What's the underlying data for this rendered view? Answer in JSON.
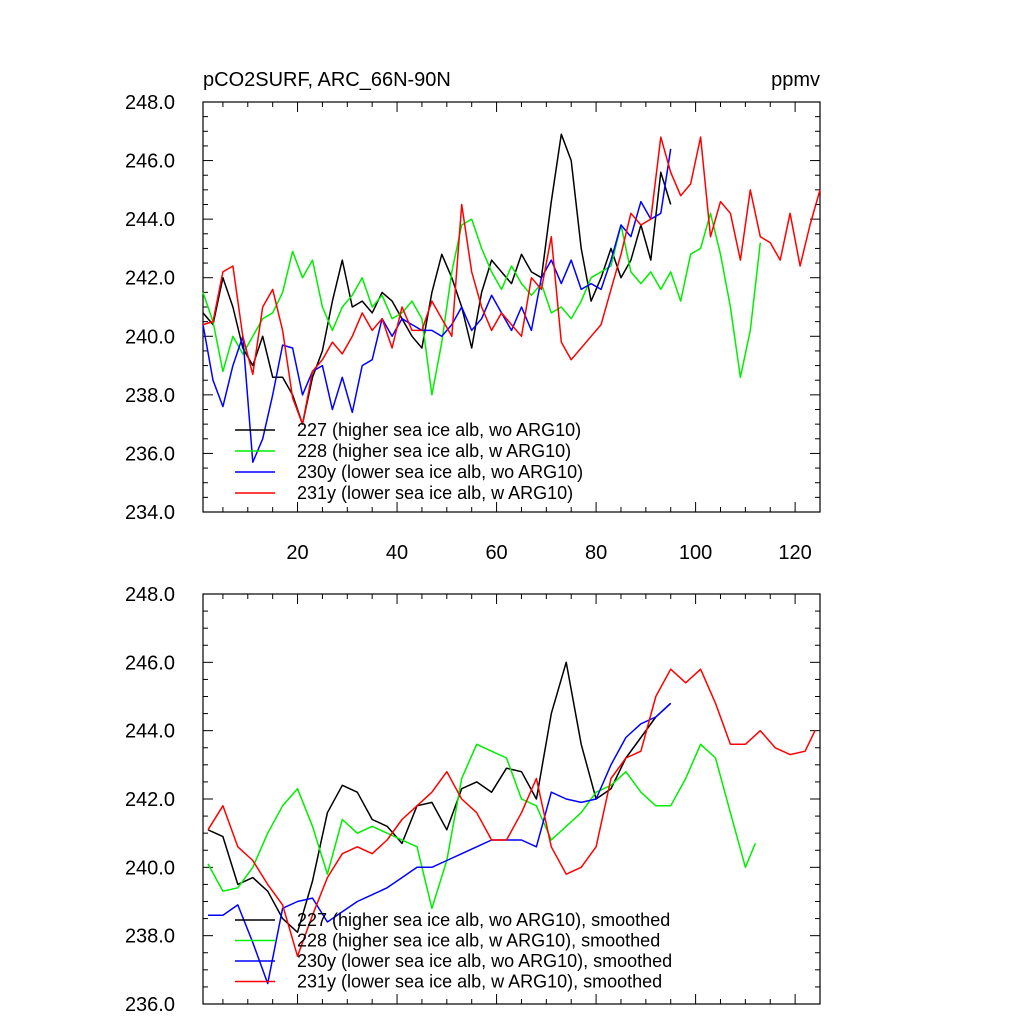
{
  "chart_data": [
    {
      "type": "line",
      "title": "pCO2SURF, ARC_66N-90N",
      "units": "ppmv",
      "xlim": [
        1,
        125
      ],
      "ylim": [
        234,
        248
      ],
      "xticks": [
        20,
        40,
        60,
        80,
        100,
        120
      ],
      "yticks": [
        234,
        236,
        238,
        240,
        242,
        244,
        246,
        248
      ],
      "ytick_labels": [
        "234.0",
        "236.0",
        "238.0",
        "240.0",
        "242.0",
        "244.0",
        "246.0",
        "248.0"
      ],
      "series": [
        {
          "name": "227 (higher sea ice alb, wo ARG10)",
          "color": "#000000",
          "x": [
            1,
            3,
            5,
            7,
            9,
            11,
            13,
            15,
            17,
            19,
            21,
            23,
            25,
            27,
            29,
            31,
            33,
            35,
            37,
            39,
            41,
            43,
            45,
            47,
            49,
            51,
            53,
            55,
            57,
            59,
            61,
            63,
            65,
            67,
            69,
            71,
            73,
            75,
            77,
            79,
            81,
            83,
            85,
            87,
            89,
            91,
            93,
            95
          ],
          "values": [
            240.8,
            240.4,
            242.0,
            241.0,
            239.6,
            239.0,
            240.0,
            238.6,
            238.6,
            238.0,
            237.0,
            238.6,
            239.5,
            241.2,
            242.6,
            241.0,
            241.2,
            240.8,
            241.5,
            241.2,
            240.6,
            240.0,
            239.6,
            241.5,
            242.8,
            242.0,
            241.0,
            239.6,
            241.5,
            242.6,
            242.2,
            241.8,
            242.8,
            242.2,
            242.0,
            244.6,
            246.9,
            246.0,
            243.0,
            241.2,
            242.0,
            243.0,
            242.0,
            242.6,
            243.8,
            242.6,
            245.6,
            244.5
          ]
        },
        {
          "name": "228 (higher sea ice alb, w ARG10)",
          "color": "#00ee00",
          "x": [
            1,
            3,
            5,
            7,
            9,
            11,
            13,
            15,
            17,
            19,
            21,
            23,
            25,
            27,
            29,
            31,
            33,
            35,
            37,
            39,
            41,
            43,
            45,
            47,
            49,
            51,
            53,
            55,
            57,
            59,
            61,
            63,
            65,
            67,
            69,
            71,
            73,
            75,
            77,
            79,
            81,
            83,
            85,
            87,
            89,
            91,
            93,
            95,
            97,
            99,
            101,
            103,
            105,
            107,
            109,
            111,
            113
          ],
          "values": [
            241.5,
            240.5,
            238.8,
            240.0,
            239.4,
            240.0,
            240.6,
            240.8,
            241.5,
            242.9,
            242.0,
            242.6,
            241.0,
            240.2,
            241.0,
            241.4,
            242.0,
            241.0,
            241.4,
            240.6,
            240.8,
            241.2,
            240.6,
            238.0,
            239.8,
            242.2,
            243.8,
            244.0,
            243.0,
            242.2,
            241.6,
            242.4,
            241.8,
            241.4,
            241.8,
            240.8,
            241.0,
            240.6,
            241.2,
            242.0,
            242.2,
            242.4,
            243.8,
            242.2,
            241.8,
            242.2,
            241.6,
            242.2,
            241.2,
            242.8,
            243.0,
            244.2,
            242.8,
            241.0,
            238.6,
            240.2,
            243.2
          ]
        },
        {
          "name": "230y (lower sea ice alb, wo ARG10)",
          "color": "#0000ff",
          "x": [
            1,
            3,
            5,
            7,
            9,
            11,
            13,
            15,
            17,
            19,
            21,
            23,
            25,
            27,
            29,
            31,
            33,
            35,
            37,
            39,
            41,
            43,
            45,
            47,
            49,
            51,
            53,
            55,
            57,
            59,
            61,
            63,
            65,
            67,
            69,
            71,
            73,
            75,
            77,
            79,
            81,
            83,
            85,
            87,
            89,
            91,
            93,
            95
          ],
          "values": [
            240.4,
            238.5,
            237.6,
            239.0,
            240.0,
            235.7,
            236.5,
            238.0,
            239.7,
            239.6,
            238.0,
            238.8,
            239.0,
            237.5,
            238.6,
            237.4,
            239.0,
            239.2,
            240.6,
            240.0,
            240.6,
            240.4,
            240.2,
            240.2,
            240.0,
            240.4,
            241.0,
            240.2,
            240.6,
            241.4,
            240.8,
            240.2,
            241.0,
            240.2,
            242.0,
            242.6,
            241.8,
            242.6,
            241.6,
            241.8,
            241.6,
            242.6,
            243.8,
            243.4,
            244.6,
            244.0,
            244.2,
            246.4
          ]
        },
        {
          "name": "231y (lower sea ice alb, w ARG10)",
          "color": "#ff0000",
          "x": [
            1,
            3,
            5,
            7,
            9,
            11,
            13,
            15,
            17,
            19,
            21,
            23,
            25,
            27,
            29,
            31,
            33,
            35,
            37,
            39,
            41,
            43,
            45,
            47,
            49,
            51,
            53,
            55,
            57,
            59,
            61,
            63,
            65,
            67,
            69,
            71,
            73,
            75,
            77,
            79,
            81,
            83,
            85,
            87,
            89,
            91,
            93,
            95,
            97,
            99,
            101,
            103,
            105,
            107,
            109,
            111,
            113,
            115,
            117,
            119,
            121,
            123,
            125
          ],
          "values": [
            240.4,
            240.5,
            242.2,
            242.4,
            240.0,
            238.7,
            241.0,
            241.6,
            240.2,
            237.9,
            237.0,
            238.8,
            239.2,
            239.8,
            239.4,
            240.0,
            240.8,
            240.2,
            240.6,
            239.6,
            241.0,
            240.2,
            240.2,
            241.2,
            240.6,
            240.0,
            244.5,
            242.2,
            241.0,
            240.2,
            240.8,
            240.4,
            240.0,
            242.0,
            241.6,
            243.4,
            239.8,
            239.2,
            239.6,
            240.0,
            240.4,
            241.6,
            242.8,
            244.2,
            243.8,
            244.0,
            246.8,
            245.6,
            244.8,
            245.2,
            246.8,
            243.4,
            244.6,
            244.2,
            242.6,
            245.0,
            243.4,
            243.2,
            242.6,
            244.2,
            242.4,
            243.8,
            245.0
          ]
        }
      ]
    },
    {
      "type": "line",
      "title": "",
      "xlim": [
        1,
        125
      ],
      "ylim": [
        236,
        248
      ],
      "xticks": [
        20,
        40,
        60,
        80,
        100,
        120
      ],
      "yticks": [
        236,
        238,
        240,
        242,
        244,
        246,
        248
      ],
      "ytick_labels": [
        "236.0",
        "238.0",
        "240.0",
        "242.0",
        "244.0",
        "246.0",
        "248.0"
      ],
      "series": [
        {
          "name": "227 (higher sea ice alb, wo ARG10), smoothed",
          "color": "#000000",
          "x": [
            2,
            5,
            8,
            11,
            14,
            17,
            20,
            23,
            26,
            29,
            32,
            35,
            38,
            41,
            44,
            47,
            50,
            53,
            56,
            59,
            62,
            65,
            68,
            71,
            74,
            77,
            80,
            83,
            86,
            89,
            92,
            95
          ],
          "values": [
            241.1,
            240.9,
            239.5,
            239.7,
            239.3,
            238.5,
            238.1,
            239.6,
            241.6,
            242.4,
            242.2,
            241.4,
            241.2,
            240.7,
            241.8,
            241.9,
            241.1,
            242.3,
            242.5,
            242.2,
            242.9,
            242.8,
            242.0,
            244.5,
            246.0,
            243.6,
            242.0,
            242.3,
            243.2,
            243.8,
            244.4,
            244.8
          ]
        },
        {
          "name": "228 (higher sea ice alb, w ARG10), smoothed",
          "color": "#00ee00",
          "x": [
            2,
            5,
            8,
            11,
            14,
            17,
            20,
            23,
            26,
            29,
            32,
            35,
            38,
            41,
            44,
            47,
            50,
            53,
            56,
            59,
            62,
            65,
            68,
            71,
            74,
            77,
            80,
            83,
            86,
            89,
            92,
            95,
            98,
            101,
            104,
            107,
            110,
            112
          ],
          "values": [
            240.1,
            239.3,
            239.4,
            240.0,
            241.0,
            241.8,
            242.3,
            241.2,
            239.8,
            241.4,
            241.0,
            241.2,
            241.0,
            240.8,
            240.6,
            238.8,
            240.2,
            242.6,
            243.6,
            243.4,
            243.2,
            242.0,
            241.8,
            240.8,
            241.2,
            241.6,
            242.2,
            242.4,
            242.8,
            242.2,
            241.8,
            241.8,
            242.6,
            243.6,
            243.2,
            241.6,
            240.0,
            240.7
          ]
        },
        {
          "name": "230y (lower sea ice alb, wo ARG10), smoothed",
          "color": "#0000ff",
          "x": [
            2,
            5,
            8,
            11,
            14,
            17,
            20,
            23,
            26,
            29,
            32,
            35,
            38,
            41,
            44,
            47,
            50,
            53,
            56,
            59,
            62,
            65,
            68,
            71,
            74,
            77,
            80,
            83,
            86,
            89,
            92,
            95
          ],
          "values": [
            238.6,
            238.6,
            238.9,
            237.8,
            236.6,
            238.8,
            239.0,
            239.1,
            238.4,
            238.7,
            239.0,
            239.2,
            239.4,
            239.7,
            240.0,
            240.0,
            240.2,
            240.4,
            240.6,
            240.8,
            240.8,
            240.8,
            240.6,
            242.2,
            242.0,
            241.9,
            242.0,
            243.0,
            243.8,
            244.2,
            244.4,
            244.8
          ]
        },
        {
          "name": "231y (lower sea ice alb, w ARG10), smoothed",
          "color": "#ff0000",
          "x": [
            2,
            5,
            8,
            11,
            14,
            17,
            20,
            23,
            26,
            29,
            32,
            35,
            38,
            41,
            44,
            47,
            50,
            53,
            56,
            59,
            62,
            65,
            68,
            71,
            74,
            77,
            80,
            83,
            86,
            89,
            92,
            95,
            98,
            101,
            104,
            107,
            110,
            113,
            116,
            119,
            122,
            124
          ],
          "values": [
            241.1,
            241.8,
            240.6,
            240.2,
            239.5,
            238.9,
            237.4,
            238.6,
            239.7,
            240.4,
            240.6,
            240.4,
            240.8,
            241.4,
            241.8,
            242.2,
            242.8,
            242.0,
            241.6,
            240.8,
            240.8,
            241.6,
            242.6,
            240.6,
            239.8,
            240.0,
            240.6,
            242.6,
            243.2,
            243.4,
            245.0,
            245.8,
            245.4,
            245.8,
            244.8,
            243.6,
            243.6,
            244.0,
            243.5,
            243.3,
            243.4,
            244.0
          ]
        }
      ]
    }
  ]
}
